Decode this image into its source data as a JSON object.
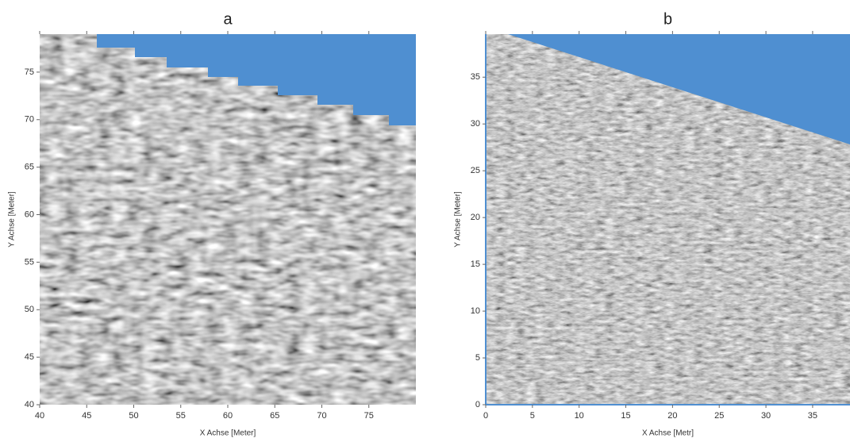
{
  "chart_data": [
    {
      "type": "image",
      "title": "a",
      "xlabel": "X Achse [Meter]",
      "ylabel": "Y Achse [Meter]",
      "xlim": [
        40,
        80
      ],
      "ylim": [
        40,
        79
      ],
      "xticks": [
        40,
        45,
        50,
        55,
        60,
        65,
        70,
        75
      ],
      "yticks": [
        40,
        45,
        50,
        55,
        60,
        65,
        70,
        75
      ]
    },
    {
      "type": "image",
      "title": "b",
      "xlabel": "X Achse [Metr]",
      "ylabel": "Y Achse [Meter]",
      "xlim": [
        0,
        39
      ],
      "ylim": [
        0,
        39.6
      ],
      "xticks": [
        0,
        5,
        10,
        15,
        20,
        25,
        30,
        35
      ],
      "yticks": [
        0,
        5,
        10,
        15,
        20,
        25,
        30,
        35
      ]
    }
  ]
}
